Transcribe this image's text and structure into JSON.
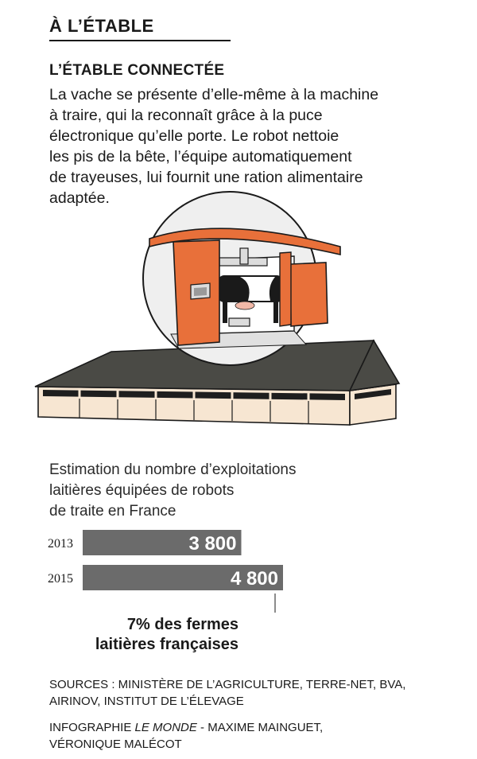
{
  "header": {
    "section_title": "À L’ÉTABLE"
  },
  "article": {
    "subtitle": "L’ÉTABLE CONNECTÉE",
    "intro_lines": [
      "La vache se présente d’elle-même à la machine",
      "à traire, qui la reconnaît grâce à la puce",
      "électronique qu’elle porte. Le robot nettoie",
      "les pis de la bête, l’équipe automatiquement",
      "de trayeuses, lui fournit une ration alimentaire",
      "adaptée."
    ]
  },
  "chart_heading_lines": [
    "Estimation du nombre d’exploitations",
    "laitières équipées de robots",
    "de traite en France"
  ],
  "chart_data": {
    "type": "bar",
    "orientation": "horizontal",
    "categories": [
      "2013",
      "2015"
    ],
    "values": [
      3800,
      4800
    ],
    "value_labels": [
      "3 800",
      "4 800"
    ],
    "bar_color": "#6b6b6b",
    "annotation_lines": [
      "7% des fermes",
      "laitières françaises"
    ]
  },
  "footer": {
    "sources_lines": [
      "SOURCES : MINISTÈRE DE L’AGRICULTURE, TERRE-NET, BVA,",
      "AIRINOV, INSTITUT DE L’ÉLEVAGE"
    ],
    "credit_prefix": "INFOGRAPHIE ",
    "credit_publication": "LE MONDE",
    "credit_line1_rest": " - MAXIME MAINGUET,",
    "credit_line2": "VÉRONIQUE MALÉCOT"
  },
  "colors": {
    "robot_orange": "#e8703a",
    "roof": "#4a4a45",
    "wall": "#f7e6d2",
    "window": "#1e1e1e"
  }
}
